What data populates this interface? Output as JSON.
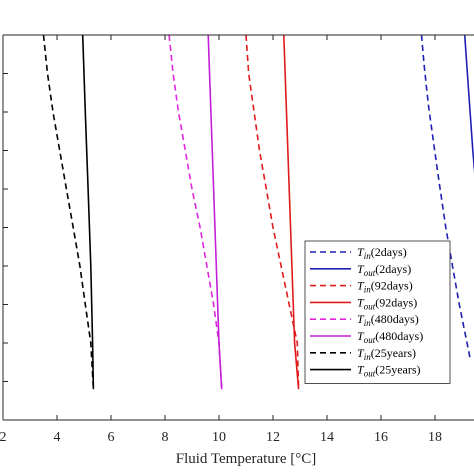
{
  "chart_data": {
    "type": "line",
    "title": "",
    "xlabel": "Fluid Temperature [°C]",
    "ylabel": "",
    "xlim": [
      2,
      20
    ],
    "ylim": [
      0,
      10
    ],
    "xticks": [
      2,
      4,
      6,
      8,
      10,
      12,
      14,
      16,
      18
    ],
    "xtick_labels": [
      "2",
      "4",
      "6",
      "8",
      "10",
      "12",
      "14",
      "16",
      "18"
    ],
    "yticks": [
      1,
      2,
      3,
      4,
      5,
      6,
      7,
      8,
      9
    ],
    "grid": false,
    "legend_position": "right",
    "series": [
      {
        "name": "T_in(2days)",
        "label_base": "T",
        "label_sub": "in",
        "label_suffix": "(2days)",
        "color": "#1f1fb4",
        "dash": true,
        "points": [
          [
            17.5,
            10.0
          ],
          [
            17.6,
            9.2
          ],
          [
            17.75,
            8.2
          ],
          [
            17.95,
            7.2
          ],
          [
            18.15,
            6.2
          ],
          [
            18.4,
            5.0
          ],
          [
            18.65,
            4.0
          ],
          [
            18.9,
            3.0
          ],
          [
            19.3,
            1.6
          ]
        ]
      },
      {
        "name": "T_out(2days)",
        "label_base": "T",
        "label_sub": "out",
        "label_suffix": "(2days)",
        "color": "#1f1fb4",
        "dash": false,
        "points": [
          [
            19.1,
            10.0
          ],
          [
            19.2,
            9.0
          ],
          [
            19.3,
            8.0
          ],
          [
            19.4,
            7.0
          ],
          [
            19.5,
            6.2
          ],
          [
            19.6,
            6.0
          ],
          [
            19.68,
            6.4
          ]
        ]
      },
      {
        "name": "T_in(92days)",
        "label_base": "T",
        "label_sub": "in",
        "label_suffix": "(92days)",
        "color": "#e01b1b",
        "dash": true,
        "points": [
          [
            11.0,
            10.0
          ],
          [
            11.1,
            9.0
          ],
          [
            11.3,
            8.0
          ],
          [
            11.5,
            7.0
          ],
          [
            11.75,
            6.0
          ],
          [
            12.0,
            5.0
          ],
          [
            12.3,
            4.0
          ],
          [
            12.6,
            3.0
          ],
          [
            12.9,
            2.0
          ],
          [
            12.95,
            0.8
          ]
        ]
      },
      {
        "name": "T_out(92days)",
        "label_base": "T",
        "label_sub": "out",
        "label_suffix": "(92days)",
        "color": "#e01b1b",
        "dash": false,
        "points": [
          [
            12.4,
            10.0
          ],
          [
            12.5,
            8.0
          ],
          [
            12.6,
            6.0
          ],
          [
            12.7,
            4.0
          ],
          [
            12.8,
            2.0
          ],
          [
            12.95,
            0.8
          ]
        ]
      },
      {
        "name": "T_in(480days)",
        "label_base": "T",
        "label_sub": "in",
        "label_suffix": "(480days)",
        "color": "#e026e0",
        "dash": true,
        "points": [
          [
            8.15,
            10.0
          ],
          [
            8.3,
            9.0
          ],
          [
            8.5,
            8.0
          ],
          [
            8.75,
            7.0
          ],
          [
            9.0,
            6.0
          ],
          [
            9.3,
            5.0
          ],
          [
            9.55,
            4.0
          ],
          [
            9.8,
            3.0
          ],
          [
            10.0,
            2.0
          ],
          [
            10.1,
            0.8
          ]
        ]
      },
      {
        "name": "T_out(480days)",
        "label_base": "T",
        "label_sub": "out",
        "label_suffix": "(480days)",
        "color": "#c31fd6",
        "dash": false,
        "points": [
          [
            9.6,
            10.0
          ],
          [
            9.7,
            8.0
          ],
          [
            9.8,
            6.0
          ],
          [
            9.9,
            4.0
          ],
          [
            10.0,
            2.0
          ],
          [
            10.1,
            0.8
          ]
        ]
      },
      {
        "name": "T_in(25years)",
        "label_base": "T",
        "label_sub": "in",
        "label_suffix": "(25years)",
        "color": "#000000",
        "dash": true,
        "points": [
          [
            3.5,
            10.0
          ],
          [
            3.65,
            9.0
          ],
          [
            3.85,
            8.0
          ],
          [
            4.1,
            7.0
          ],
          [
            4.35,
            6.0
          ],
          [
            4.6,
            5.0
          ],
          [
            4.85,
            4.0
          ],
          [
            5.05,
            3.0
          ],
          [
            5.25,
            2.0
          ],
          [
            5.35,
            0.8
          ]
        ]
      },
      {
        "name": "T_out(25years)",
        "label_base": "T",
        "label_sub": "out",
        "label_suffix": "(25years)",
        "color": "#000000",
        "dash": false,
        "points": [
          [
            4.95,
            10.0
          ],
          [
            5.05,
            8.0
          ],
          [
            5.15,
            6.0
          ],
          [
            5.25,
            4.0
          ],
          [
            5.32,
            2.0
          ],
          [
            5.35,
            0.8
          ]
        ]
      }
    ]
  }
}
